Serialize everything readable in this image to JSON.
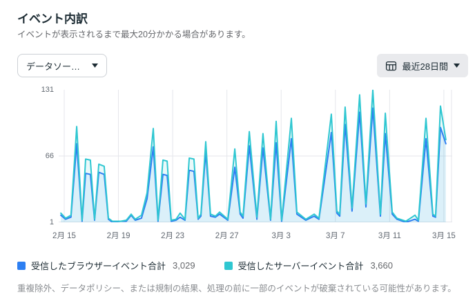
{
  "page": {
    "title": "イベント内訳",
    "subtitle": "イベントが表示されるまで最大20分かかる場合があります。",
    "footer": "重複除外、データポリシー、または規制の結果、処理の前に一部のイベントが破棄されている可能性があります。"
  },
  "controls": {
    "data_source": {
      "label": "データソー…"
    },
    "date_range": {
      "label": "最近28日間"
    }
  },
  "chart_data": {
    "type": "line",
    "title": "イベント内訳",
    "x_unit": "days since 2/15",
    "xlabel": "",
    "ylabel": "",
    "ylim": [
      1,
      131
    ],
    "y_ticks": [
      "131",
      "66",
      "1"
    ],
    "y_tick_values": [
      131,
      66,
      1
    ],
    "x_tick_days": [
      0,
      4,
      8,
      12,
      16,
      20,
      24,
      28
    ],
    "x_tick_labels": [
      "2月 15",
      "2月 19",
      "2月 23",
      "2月 27",
      "3月 3",
      "3月 7",
      "3月 11",
      "3月 15"
    ],
    "grid_color": "#e4e6eb",
    "legend_position": "bottom",
    "x": [
      -0.25,
      0.1,
      0.5,
      0.92,
      1.32,
      1.58,
      1.93,
      2.24,
      2.55,
      2.95,
      3.26,
      3.56,
      4.17,
      4.58,
      4.94,
      5.24,
      5.7,
      6.11,
      6.57,
      6.92,
      7.28,
      7.59,
      7.89,
      8.25,
      8.55,
      8.91,
      9.22,
      9.57,
      9.88,
      10.08,
      10.44,
      10.79,
      11.15,
      11.46,
      12.07,
      12.58,
      12.98,
      13.19,
      13.65,
      14.21,
      14.66,
      15.22,
      15.63,
      16.04,
      16.75,
      17.16,
      17.82,
      18.43,
      18.79,
      19.7,
      20.11,
      20.32,
      20.72,
      21.23,
      21.79,
      22.25,
      22.76,
      23.32,
      23.68,
      24.19,
      24.54,
      25.2,
      25.87,
      26.12,
      26.68,
      27.19,
      27.39,
      27.75,
      28.15
    ],
    "series": [
      {
        "name": "受信したブラウザーイベント合計",
        "total": "3,029",
        "color": "#2d7ff2",
        "fill": "rgba(45,127,242,0.08)",
        "values": [
          8,
          4,
          6,
          78,
          2,
          49,
          48,
          3,
          50,
          48,
          4,
          1,
          2,
          2,
          8,
          3,
          5,
          24,
          75,
          2,
          48,
          47,
          2,
          3,
          6,
          3,
          52,
          51,
          4,
          7,
          70,
          7,
          6,
          9,
          3,
          55,
          9,
          5,
          76,
          4,
          74,
          3,
          79,
          2,
          83,
          9,
          3,
          7,
          4,
          89,
          10,
          7,
          97,
          12,
          109,
          16,
          113,
          7,
          88,
          9,
          4,
          1,
          4,
          2,
          83,
          7,
          6,
          94,
          78
        ]
      },
      {
        "name": "受信したサーバーイベント合計",
        "total": "3,660",
        "color": "#2fc7d1",
        "fill": "rgba(47,199,209,0.10)",
        "values": [
          10,
          5,
          8,
          95,
          3,
          63,
          62,
          4,
          58,
          56,
          5,
          2,
          2,
          3,
          9,
          4,
          8,
          30,
          93,
          3,
          62,
          61,
          3,
          4,
          10,
          4,
          64,
          63,
          5,
          9,
          80,
          9,
          7,
          11,
          4,
          73,
          11,
          7,
          90,
          6,
          88,
          4,
          100,
          3,
          103,
          11,
          4,
          9,
          5,
          107,
          12,
          9,
          114,
          15,
          126,
          19,
          131,
          9,
          108,
          11,
          5,
          2,
          8,
          3,
          103,
          9,
          7,
          115,
          82
        ]
      }
    ]
  }
}
